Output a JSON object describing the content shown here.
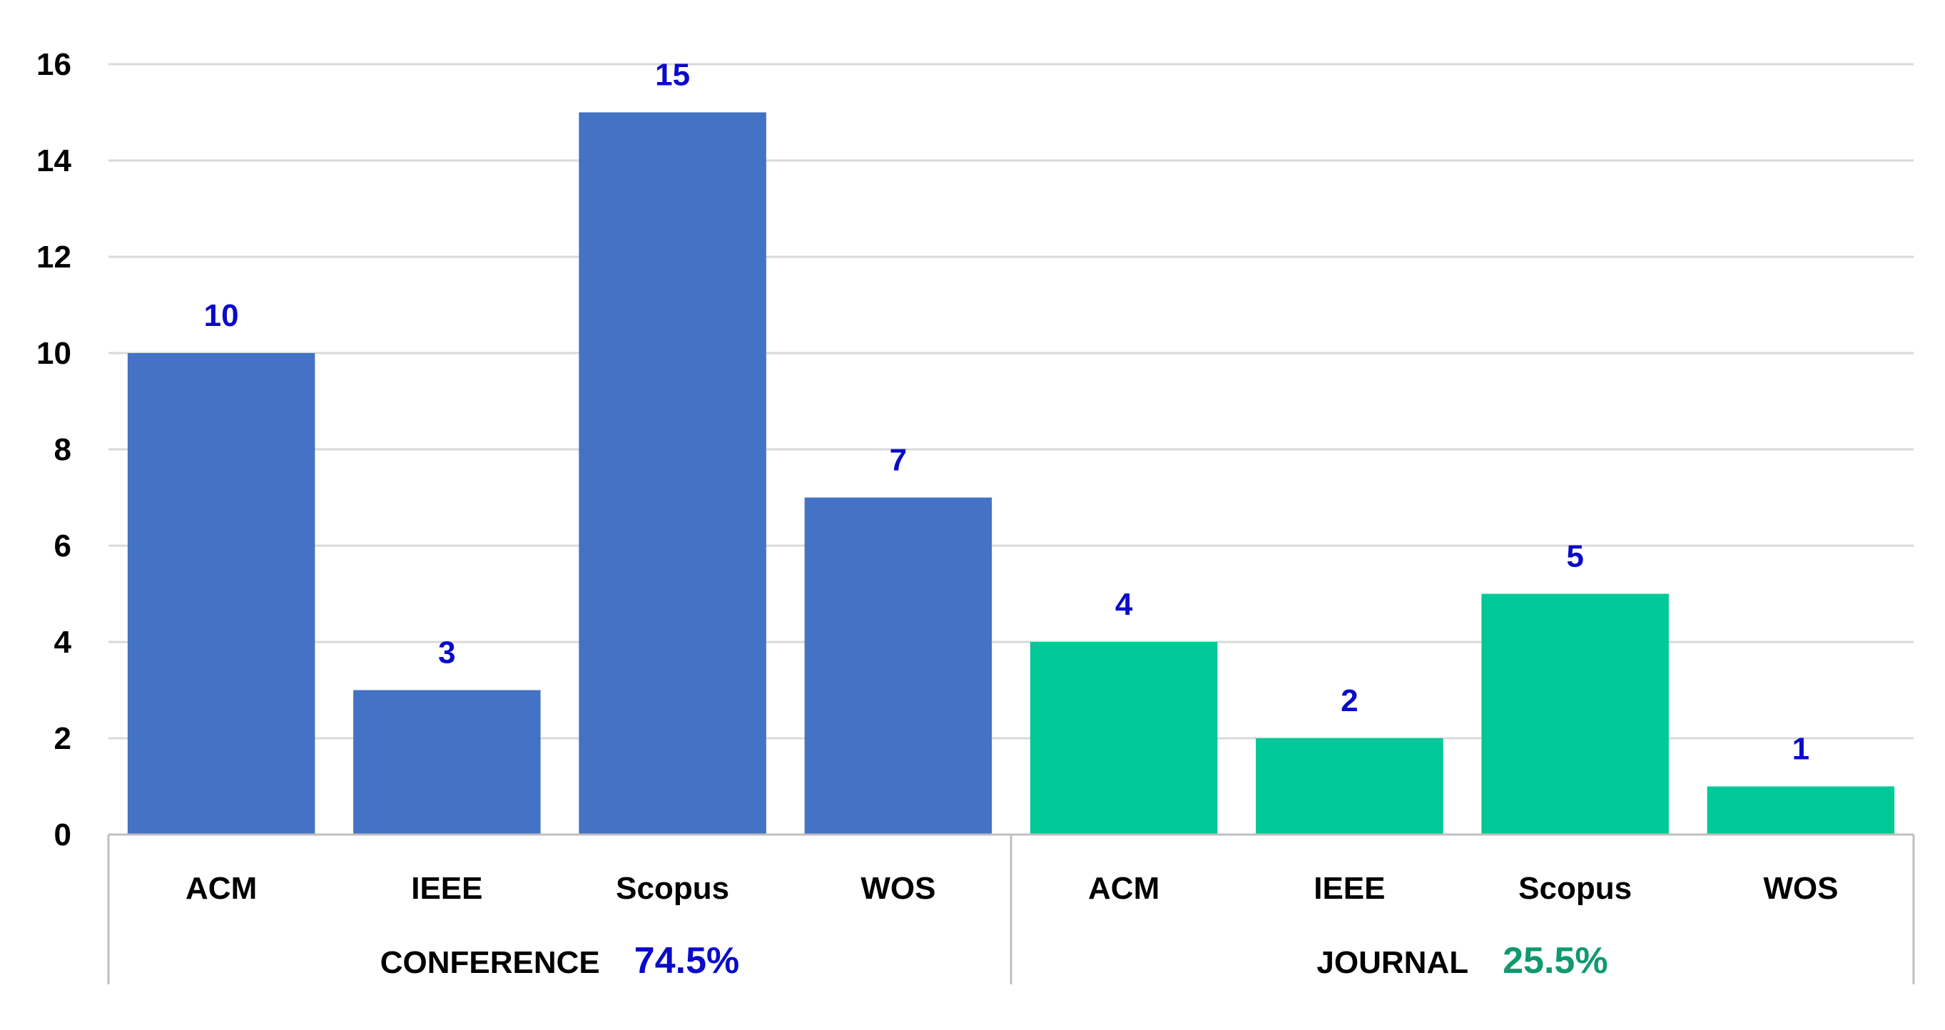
{
  "chart_data": {
    "type": "bar",
    "ylim": [
      0,
      16
    ],
    "yticks": [
      0,
      2,
      4,
      6,
      8,
      10,
      12,
      14,
      16
    ],
    "grid": true,
    "groups": [
      {
        "label": "CONFERENCE",
        "percent": "74.5%",
        "color": "#4472C4",
        "percent_color": "#0A0AC8",
        "categories": [
          "ACM",
          "IEEE",
          "Scopus",
          "WOS"
        ],
        "values": [
          10,
          3,
          15,
          7
        ]
      },
      {
        "label": "JOURNAL",
        "percent": "25.5%",
        "color": "#00C896",
        "percent_color": "#0E9A6E",
        "categories": [
          "ACM",
          "IEEE",
          "Scopus",
          "WOS"
        ],
        "values": [
          4,
          2,
          5,
          1
        ]
      }
    ],
    "value_label_color": "#0A0AC8",
    "gridline_color": "#D9D9D9",
    "axis_color": "#BFBFBF"
  }
}
